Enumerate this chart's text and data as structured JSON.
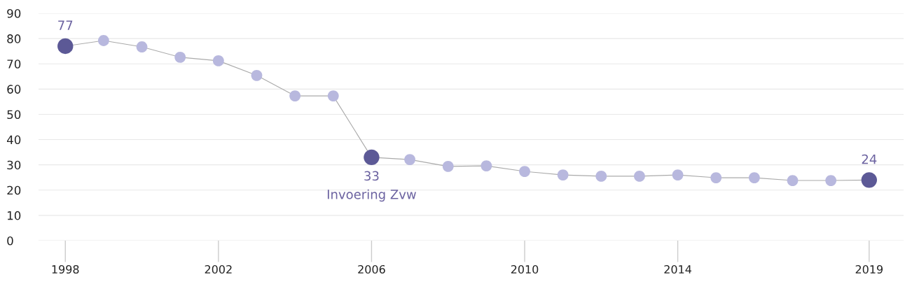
{
  "chart_data": {
    "type": "line",
    "x": [
      1998,
      1999,
      2000,
      2001,
      2002,
      2003,
      2004,
      2005,
      2006,
      2007,
      2008,
      2009,
      2010,
      2011,
      2012,
      2013,
      2014,
      2015,
      2016,
      2017,
      2018,
      2019
    ],
    "series": [
      {
        "color": "#aaaaaa",
        "colors": [
          "#5c5996",
          "#b8b8de",
          "#b8b8de",
          "#b8b8de",
          "#b8b8de",
          "#b8b8de",
          "#b8b8de",
          "#b8b8de",
          "#5c5996",
          "#b8b8de",
          "#b8b8de",
          "#b8b8de",
          "#b8b8de",
          "#b8b8de",
          "#b8b8de",
          "#b8b8de",
          "#b8b8de",
          "#b8b8de",
          "#b8b8de",
          "#b8b8de",
          "#b8b8de",
          "#5c5996"
        ],
        "values": [
          77,
          79.2,
          76.7,
          72.6,
          71.2,
          65.4,
          57.3,
          57.3,
          33,
          32.1,
          29.4,
          29.6,
          27.4,
          26.0,
          25.5,
          25.5,
          26.0,
          24.9,
          24.9,
          23.8,
          23.8,
          24
        ],
        "value_labels": [
          "77",
          null,
          null,
          null,
          null,
          null,
          null,
          null,
          "33",
          null,
          null,
          null,
          null,
          null,
          null,
          null,
          null,
          null,
          null,
          null,
          null,
          "24"
        ]
      }
    ],
    "annotations": [
      {
        "text": "Invoering Zvw",
        "x": 2006,
        "y": 33
      }
    ],
    "xlim": [
      1997.3,
      2019.9
    ],
    "xticks": [
      1998,
      2002,
      2006,
      2010,
      2014,
      2019
    ],
    "ylim": [
      0,
      90
    ],
    "yticks": [
      0,
      10,
      20,
      30,
      40,
      50,
      60,
      70,
      80,
      90
    ],
    "grid": "y",
    "marker": "circle",
    "line_style": "solid",
    "legend": false
  }
}
